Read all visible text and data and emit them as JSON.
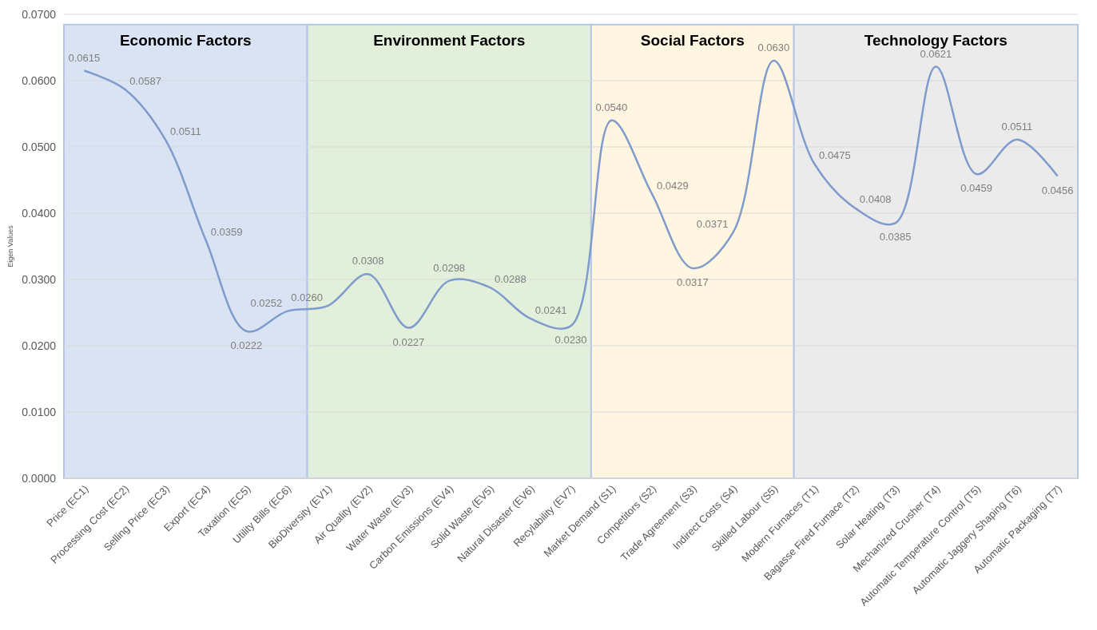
{
  "chart_data": {
    "type": "line",
    "ylabel": "Eigen Values",
    "categories": [
      "Price (EC1)",
      "Processing Cost (EC2)",
      "Selling Price (EC3)",
      "Export (EC4)",
      "Taxation (EC5)",
      "Utility Bills (EC6)",
      "BioDiversity (EV1)",
      "Air Quality (EV2)",
      "Water Waste (EV3)",
      "Carbon Emissions (EV4)",
      "Solid Waste (EV5)",
      "Natural Disaster (EV6)",
      "Recylability (EV7)",
      "Market Demand (S1)",
      "Competitors (S2)",
      "Trade Agreement (S3)",
      "Indirect Costs (S4)",
      "Skilled Labour (S5)",
      "Modern Furnaces (T1)",
      "Bagasse Fired Fumace (T2)",
      "Solar Heating (T3)",
      "Mechanized Crusher (T4)",
      "Automatic Temperature Control (T5)",
      "Automatic Jaggery Shaping (T6)",
      "Automatic Packaging (T7)"
    ],
    "series": [
      {
        "color": "#7f9bcc",
        "values": [
          0.0615,
          0.0587,
          0.0511,
          0.0359,
          0.0222,
          0.0252,
          0.026,
          0.0308,
          0.0227,
          0.0298,
          0.0288,
          0.0241,
          0.023,
          0.054,
          0.0429,
          0.0317,
          0.0371,
          0.063,
          0.0475,
          0.0408,
          0.0385,
          0.0621,
          0.0459,
          0.0511,
          0.0456
        ],
        "value_labels": [
          "0.0615",
          "0.0587",
          "0.0511",
          "0.0359",
          "0.0222",
          "0.0252",
          "0.0260",
          "0.0308",
          "0.0227",
          "0.0298",
          "0.0288",
          "0.0241",
          "0.0230",
          "0.0540",
          "0.0429",
          "0.0317",
          "0.0371",
          "0.0630",
          "0.0475",
          "0.0408",
          "0.0385",
          "0.0621",
          "0.0459",
          "0.0511",
          "0.0456"
        ]
      }
    ],
    "ylim": [
      0,
      0.07
    ],
    "yticks": [
      {
        "value": 0,
        "label": "0.0000"
      },
      {
        "value": 0.01,
        "label": "0.0100"
      },
      {
        "value": 0.02,
        "label": "0.0200"
      },
      {
        "value": 0.03,
        "label": "0.0300"
      },
      {
        "value": 0.04,
        "label": "0.0400"
      },
      {
        "value": 0.05,
        "label": "0.0500"
      },
      {
        "value": 0.06,
        "label": "0.0600"
      },
      {
        "value": 0.07,
        "label": "0.0700"
      }
    ],
    "grid": "y",
    "marker": "none",
    "line_style": "solid",
    "bands": [
      {
        "axis": "x",
        "from": "Price (EC1)",
        "to": "Utility Bills (EC6)",
        "label": "Economic Factors",
        "color": "#dae3f3"
      },
      {
        "axis": "x",
        "from": "BioDiversity (EV1)",
        "to": "Recylability (EV7)",
        "label": "Environment Factors",
        "color": "#e2efda"
      },
      {
        "axis": "x",
        "from": "Market Demand (S1)",
        "to": "Skilled Labour (S5)",
        "label": "Social Factors",
        "color": "#fff5e1"
      },
      {
        "axis": "x",
        "from": "Modern Furnaces (T1)",
        "to": "Automatic Packaging (T7)",
        "label": "Technology Factors",
        "color": "#ebebeb"
      }
    ]
  }
}
